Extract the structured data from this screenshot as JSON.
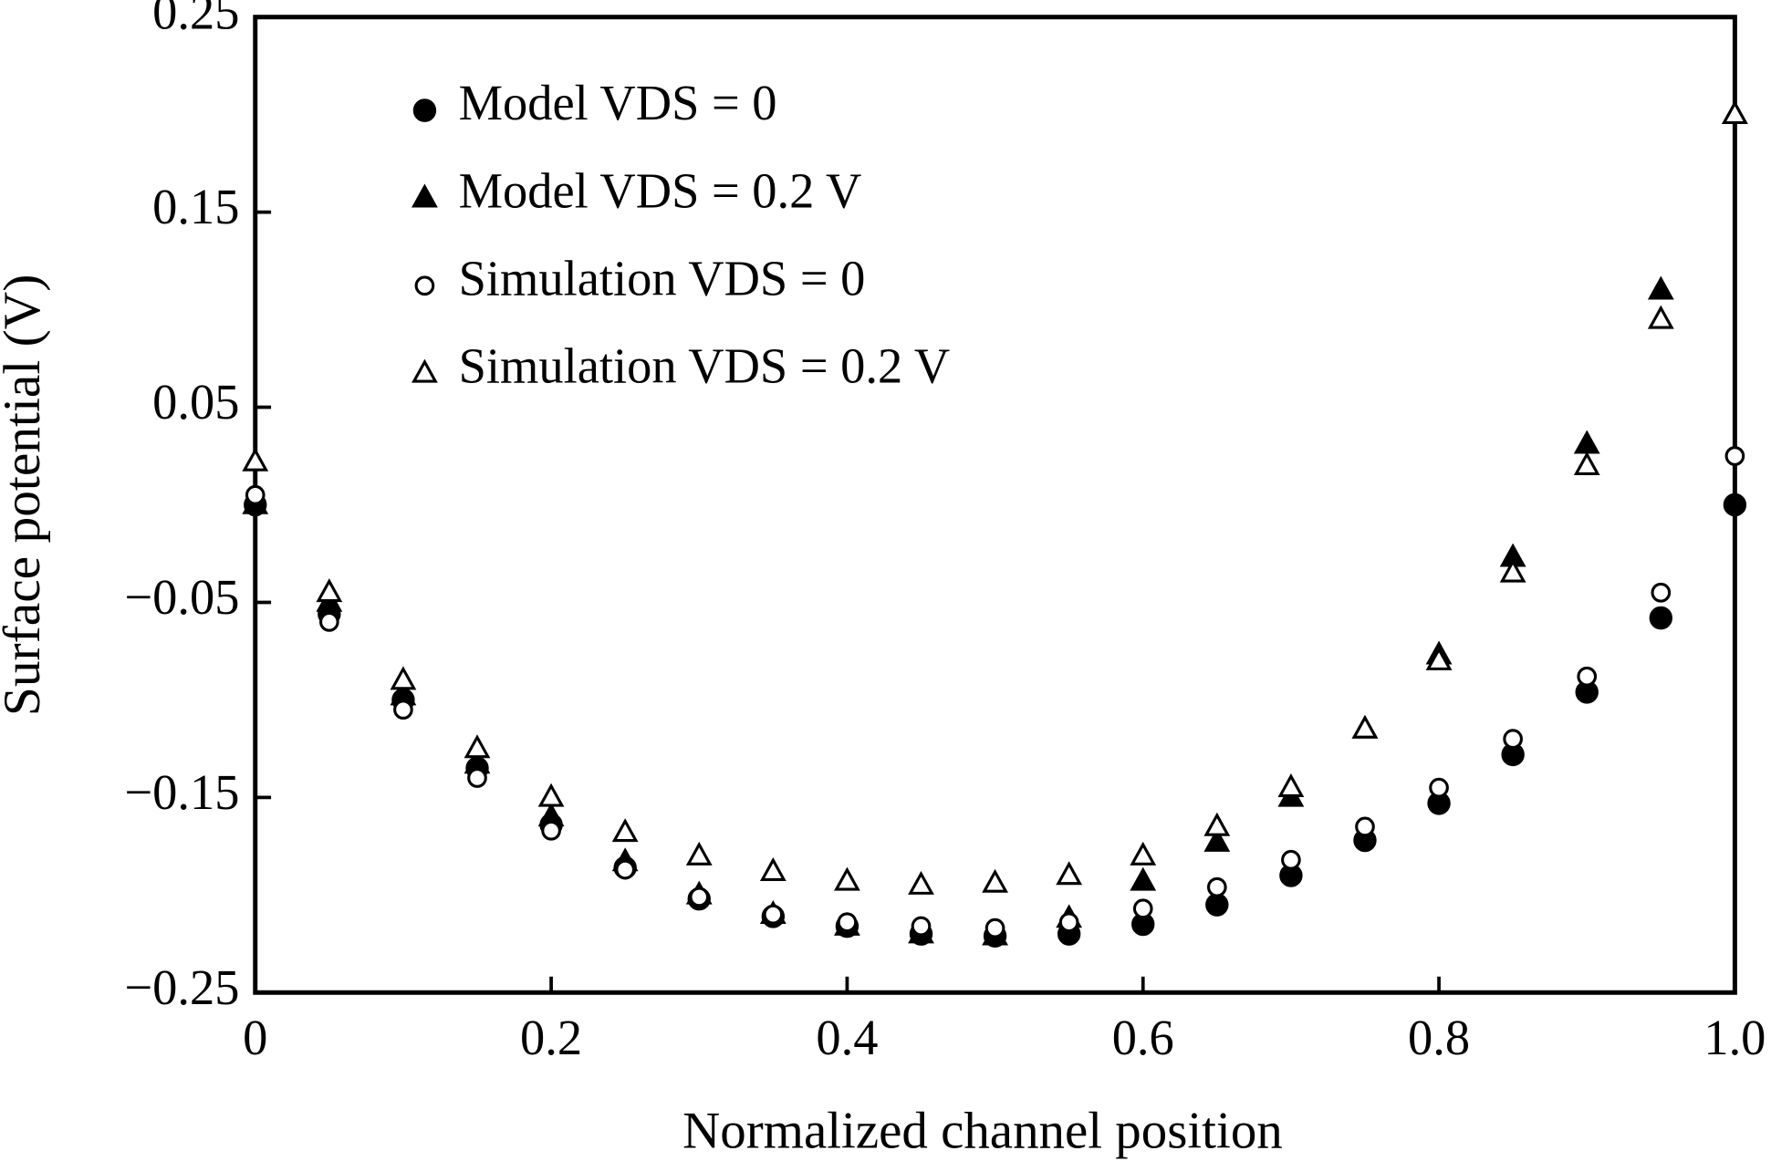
{
  "chart_data": {
    "type": "scatter",
    "xlabel": "Normalized channel position",
    "ylabel": "Surface potential (V)",
    "x": [
      0,
      0.05,
      0.1,
      0.15,
      0.2,
      0.25,
      0.3,
      0.35,
      0.4,
      0.45,
      0.5,
      0.55,
      0.6,
      0.65,
      0.7,
      0.75,
      0.8,
      0.85,
      0.9,
      0.95,
      1.0
    ],
    "series": [
      {
        "name": "Model VDS = 0",
        "color": "#000000",
        "marker": "circle",
        "filled": true,
        "values": [
          0,
          -0.056,
          -0.1,
          -0.135,
          -0.164,
          -0.186,
          -0.202,
          -0.211,
          -0.216,
          -0.22,
          -0.221,
          -0.22,
          -0.215,
          -0.205,
          -0.19,
          -0.172,
          -0.153,
          -0.128,
          -0.096,
          -0.058,
          0.0
        ]
      },
      {
        "name": "Model VDS = 0.2 V",
        "color": "#000000",
        "marker": "triangle",
        "filled": true,
        "values": [
          0,
          -0.05,
          -0.098,
          -0.133,
          -0.16,
          -0.183,
          -0.2,
          -0.21,
          -0.216,
          -0.22,
          -0.221,
          -0.212,
          -0.193,
          -0.173,
          -0.15,
          -0.115,
          -0.077,
          -0.027,
          0.031,
          0.11,
          0.2
        ]
      },
      {
        "name": "Simulation VDS = 0",
        "color": "#000000",
        "marker": "circle",
        "filled": false,
        "values": [
          0.005,
          -0.06,
          -0.105,
          -0.14,
          -0.167,
          -0.187,
          -0.201,
          -0.21,
          -0.214,
          -0.216,
          -0.217,
          -0.214,
          -0.207,
          -0.196,
          -0.182,
          -0.165,
          -0.145,
          -0.12,
          -0.088,
          -0.045,
          0.025
        ]
      },
      {
        "name": "Simulation VDS = 0.2 V",
        "color": "#000000",
        "marker": "triangle",
        "filled": false,
        "values": [
          0.022,
          -0.045,
          -0.09,
          -0.125,
          -0.15,
          -0.168,
          -0.18,
          -0.188,
          -0.193,
          -0.195,
          -0.194,
          -0.19,
          -0.18,
          -0.165,
          -0.145,
          -0.115,
          -0.08,
          -0.035,
          0.02,
          0.095,
          0.2
        ]
      }
    ],
    "xlim": [
      0,
      1
    ],
    "ylim": [
      -0.25,
      0.25
    ],
    "xticks": [
      0,
      0.2,
      0.4,
      0.6,
      0.8,
      {
        "value": 1,
        "label": "1.0"
      }
    ],
    "yticks": [
      {
        "value": -0.25,
        "label": "−0.25"
      },
      {
        "value": -0.15,
        "label": "−0.15"
      },
      {
        "value": -0.05,
        "label": "−0.05"
      },
      0.05,
      0.15,
      0.25
    ],
    "grid": false,
    "legend": "upper left"
  }
}
